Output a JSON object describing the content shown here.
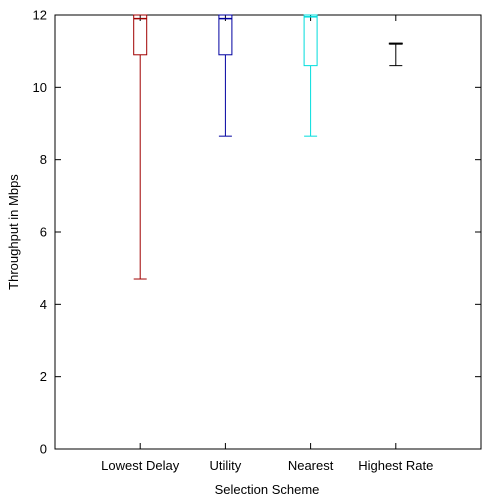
{
  "chart_data": {
    "type": "box",
    "xlabel": "Selection Scheme",
    "ylabel": "Throughput in Mbps",
    "ylim": [
      0,
      12
    ],
    "yticks": [
      0,
      2,
      4,
      6,
      8,
      10,
      12
    ],
    "grid": false,
    "legend": "none",
    "categories": [
      "Lowest Delay",
      "Utility",
      "Nearest",
      "Highest Rate"
    ],
    "series": [
      {
        "category": "Lowest Delay",
        "color": "#a00000",
        "min": 4.7,
        "q1": 10.9,
        "median": 11.9,
        "q3": 12.0,
        "max": 12.0
      },
      {
        "category": "Utility",
        "color": "#0000a0",
        "min": 8.65,
        "q1": 10.9,
        "median": 11.9,
        "q3": 12.0,
        "max": 12.0
      },
      {
        "category": "Nearest",
        "color": "#00dddd",
        "min": 8.65,
        "q1": 10.6,
        "median": 11.95,
        "q3": 12.0,
        "max": 12.0
      },
      {
        "category": "Highest Rate",
        "color": "#000000",
        "min": 10.6,
        "q1": 11.2,
        "median": 11.2,
        "q3": 11.22,
        "max": 11.22
      }
    ]
  }
}
